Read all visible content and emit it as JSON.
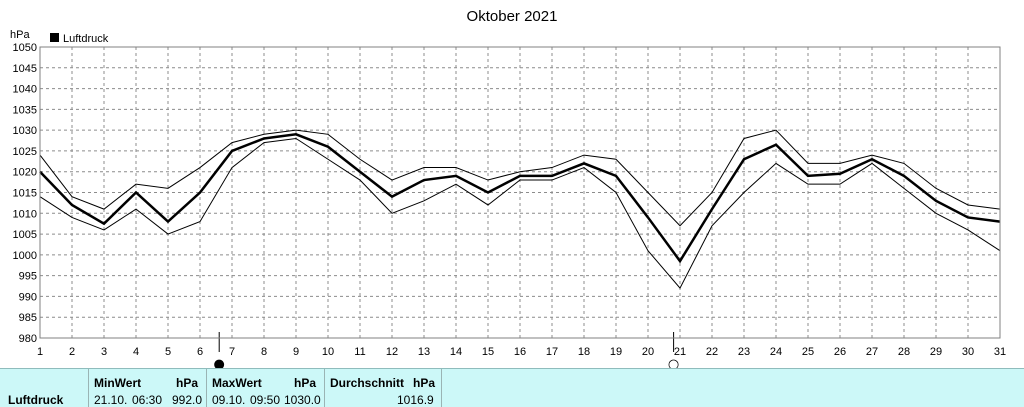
{
  "chart_data": {
    "type": "line",
    "title": "Oktober 2021",
    "ylabel": "hPa",
    "legend": {
      "label": "Luftdruck",
      "placement": "top-left",
      "color": "#000000"
    },
    "x": [
      1,
      2,
      3,
      4,
      5,
      6,
      7,
      8,
      9,
      10,
      11,
      12,
      13,
      14,
      15,
      16,
      17,
      18,
      19,
      20,
      21,
      22,
      23,
      24,
      25,
      26,
      27,
      28,
      29,
      30,
      31
    ],
    "xlim": [
      1,
      31
    ],
    "ylim": [
      980,
      1050
    ],
    "yticks": [
      980,
      985,
      990,
      995,
      1000,
      1005,
      1010,
      1015,
      1020,
      1025,
      1030,
      1035,
      1040,
      1045,
      1050
    ],
    "grid": true,
    "series": [
      {
        "values": [
          1024,
          1014,
          1011,
          1017,
          1016,
          1021,
          1027,
          1029,
          1030,
          1029,
          1023,
          1018,
          1021,
          1021,
          1018,
          1020,
          1021,
          1024,
          1023,
          1015,
          1007,
          1015,
          1028,
          1030,
          1022,
          1022,
          1024,
          1022,
          1016,
          1012,
          1011
        ],
        "width": 1
      },
      {
        "values": [
          1020,
          1012,
          1007.5,
          1015,
          1008,
          1015,
          1025,
          1028,
          1029,
          1026,
          1020,
          1014,
          1018,
          1019,
          1015,
          1019,
          1019,
          1022,
          1019,
          1009,
          998.5,
          1011,
          1023,
          1026.5,
          1019,
          1019.5,
          1023,
          1019,
          1013,
          1009,
          1008
        ],
        "width": 2.5
      },
      {
        "values": [
          1014,
          1009,
          1006,
          1011,
          1005,
          1008,
          1021,
          1027,
          1028,
          1023,
          1018,
          1010,
          1013,
          1017,
          1012,
          1018,
          1018,
          1021,
          1015,
          1001,
          992,
          1007,
          1015,
          1022,
          1017,
          1017,
          1022,
          1016,
          1010,
          1006,
          1001
        ],
        "width": 1
      }
    ],
    "markers": [
      {
        "x": 6.6,
        "symbol": "●"
      },
      {
        "x": 20.8,
        "symbol": "○"
      }
    ]
  },
  "summary": {
    "row_label": "Luftdruck",
    "min": {
      "header": "MinWert",
      "unit": "hPa",
      "date": "21.10.",
      "time": "06:30",
      "value": "992.0"
    },
    "max": {
      "header": "MaxWert",
      "unit": "hPa",
      "date": "09.10.",
      "time": "09:50",
      "value": "1030.0"
    },
    "avg": {
      "header": "Durchschnitt",
      "unit": "hPa",
      "value": "1016.9"
    },
    "background": "#ccf8f8"
  }
}
